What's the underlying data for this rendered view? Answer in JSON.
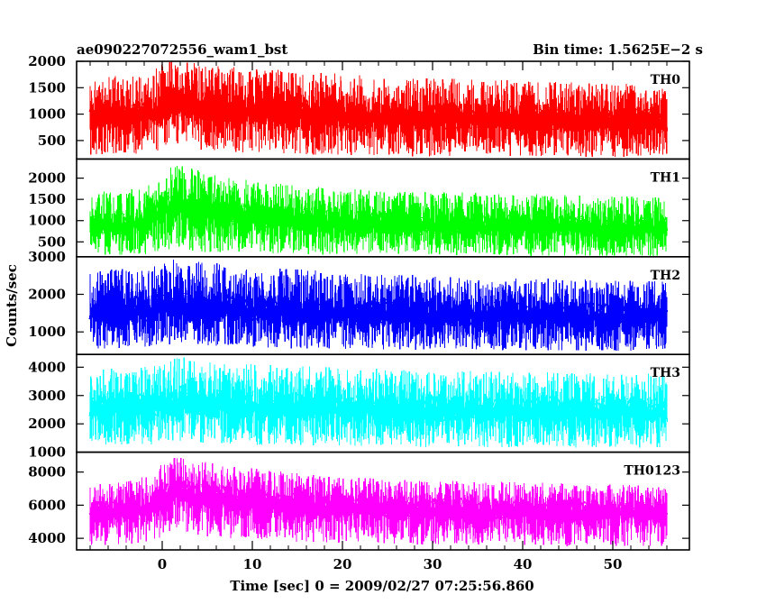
{
  "chart_data": {
    "type": "line",
    "title": "ae090227072556_wam1_bst",
    "subtitle": "Bin time: 1.5625E−2 s",
    "xlabel": "Time [sec] 0 = 2009/02/27 07:25:56.860",
    "ylabel": "Counts/sec",
    "xlim": [
      -9.5,
      58.5
    ],
    "x_ticks": [
      0,
      10,
      20,
      30,
      40,
      50
    ],
    "x_tick_labels": [
      "0",
      "10",
      "20",
      "30",
      "40",
      "50"
    ],
    "grid": false,
    "series": [
      {
        "name": "TH0",
        "color": "#ff0000",
        "ylim": [
          150,
          2000
        ],
        "y_ticks": [
          500,
          1000,
          1500,
          2000
        ],
        "y_tick_labels": [
          "500",
          "1000",
          "1500",
          "2000"
        ],
        "x": [
          -8,
          -6,
          -4,
          -2,
          0,
          1,
          2,
          3,
          4,
          6,
          8,
          10,
          12,
          14,
          16,
          18,
          20,
          22,
          24,
          26,
          28,
          30,
          32,
          34,
          36,
          38,
          40,
          42,
          44,
          46,
          48,
          50,
          52,
          54,
          56
        ],
        "values": [
          950,
          980,
          1000,
          1020,
          1150,
          1220,
          1250,
          1180,
          1150,
          1120,
          1100,
          1080,
          1050,
          1030,
          1020,
          1000,
          980,
          970,
          960,
          960,
          950,
          950,
          950,
          940,
          940,
          940,
          930,
          930,
          930,
          920,
          920,
          920,
          910,
          910,
          900
        ],
        "lower": [
          220,
          230,
          250,
          240,
          320,
          380,
          400,
          350,
          320,
          300,
          280,
          270,
          260,
          250,
          240,
          230,
          220,
          220,
          210,
          210,
          200,
          200,
          200,
          200,
          195,
          195,
          190,
          190,
          190,
          185,
          185,
          185,
          180,
          180,
          180
        ],
        "upper": [
          1650,
          1700,
          1750,
          1800,
          1950,
          2000,
          2000,
          1980,
          1950,
          1920,
          1900,
          1880,
          1850,
          1830,
          1800,
          1780,
          1760,
          1740,
          1720,
          1710,
          1700,
          1690,
          1680,
          1670,
          1660,
          1650,
          1640,
          1630,
          1620,
          1610,
          1600,
          1590,
          1580,
          1570,
          1560
        ]
      },
      {
        "name": "TH1",
        "color": "#00ff00",
        "ylim": [
          150,
          2450
        ],
        "y_ticks": [
          500,
          1000,
          1500,
          2000
        ],
        "y_tick_labels": [
          "500",
          "1000",
          "1500",
          "2000"
        ],
        "x": [
          -8,
          -6,
          -4,
          -2,
          0,
          1,
          2,
          3,
          4,
          6,
          8,
          10,
          12,
          14,
          16,
          18,
          20,
          22,
          24,
          26,
          28,
          30,
          32,
          34,
          36,
          38,
          40,
          42,
          44,
          46,
          48,
          50,
          52,
          54,
          56
        ],
        "values": [
          900,
          920,
          950,
          960,
          1300,
          1400,
          1450,
          1350,
          1300,
          1250,
          1180,
          1120,
          1080,
          1050,
          1020,
          1000,
          980,
          960,
          950,
          940,
          930,
          920,
          910,
          905,
          900,
          895,
          890,
          885,
          880,
          875,
          870,
          865,
          860,
          855,
          850
        ],
        "lower": [
          180,
          190,
          200,
          200,
          260,
          300,
          320,
          280,
          260,
          240,
          230,
          220,
          210,
          205,
          200,
          195,
          190,
          190,
          185,
          180,
          180,
          178,
          176,
          175,
          174,
          172,
          170,
          170,
          168,
          166,
          165,
          164,
          163,
          162,
          160
        ],
        "upper": [
          1650,
          1700,
          1750,
          1780,
          2050,
          2300,
          2350,
          2250,
          2200,
          2100,
          2000,
          1950,
          1900,
          1860,
          1820,
          1790,
          1760,
          1740,
          1720,
          1700,
          1690,
          1680,
          1670,
          1660,
          1650,
          1640,
          1630,
          1620,
          1610,
          1600,
          1590,
          1580,
          1570,
          1560,
          1550
        ]
      },
      {
        "name": "TH2",
        "color": "#0000ff",
        "ylim": [
          400,
          3000
        ],
        "y_ticks": [
          1000,
          2000,
          3000
        ],
        "y_tick_labels": [
          "1000",
          "2000",
          "3000"
        ],
        "x": [
          -8,
          -6,
          -4,
          -2,
          0,
          1,
          2,
          3,
          4,
          6,
          8,
          10,
          12,
          14,
          16,
          18,
          20,
          22,
          24,
          26,
          28,
          30,
          32,
          34,
          36,
          38,
          40,
          42,
          44,
          46,
          48,
          50,
          52,
          54,
          56
        ],
        "values": [
          1550,
          1580,
          1600,
          1620,
          1700,
          1750,
          1780,
          1720,
          1700,
          1680,
          1650,
          1620,
          1600,
          1580,
          1560,
          1550,
          1540,
          1530,
          1520,
          1510,
          1500,
          1495,
          1490,
          1485,
          1480,
          1475,
          1470,
          1465,
          1460,
          1455,
          1450,
          1445,
          1440,
          1435,
          1430
        ],
        "lower": [
          520,
          540,
          560,
          570,
          620,
          680,
          700,
          650,
          630,
          610,
          590,
          580,
          570,
          560,
          550,
          545,
          540,
          535,
          530,
          525,
          520,
          518,
          516,
          514,
          512,
          510,
          508,
          506,
          504,
          502,
          500,
          498,
          496,
          494,
          492
        ],
        "upper": [
          2600,
          2650,
          2700,
          2720,
          2850,
          2950,
          3000,
          2920,
          2880,
          2840,
          2800,
          2760,
          2720,
          2690,
          2660,
          2630,
          2600,
          2580,
          2560,
          2540,
          2520,
          2500,
          2480,
          2460,
          2450,
          2440,
          2430,
          2420,
          2410,
          2400,
          2390,
          2380,
          2370,
          2360,
          2350
        ]
      },
      {
        "name": "TH3",
        "color": "#00ffff",
        "ylim": [
          1000,
          4450
        ],
        "y_ticks": [
          1000,
          2000,
          3000,
          4000
        ],
        "y_tick_labels": [
          "1000",
          "2000",
          "3000",
          "4000"
        ],
        "x": [
          -8,
          -6,
          -4,
          -2,
          0,
          1,
          2,
          3,
          4,
          6,
          8,
          10,
          12,
          14,
          16,
          18,
          20,
          22,
          24,
          26,
          28,
          30,
          32,
          34,
          36,
          38,
          40,
          42,
          44,
          46,
          48,
          50,
          52,
          54,
          56
        ],
        "values": [
          2600,
          2620,
          2650,
          2670,
          2750,
          2800,
          2820,
          2780,
          2760,
          2740,
          2720,
          2700,
          2680,
          2660,
          2640,
          2620,
          2600,
          2590,
          2580,
          2570,
          2560,
          2550,
          2545,
          2540,
          2535,
          2530,
          2525,
          2520,
          2515,
          2510,
          2505,
          2500,
          2495,
          2490,
          2485
        ],
        "lower": [
          1200,
          1220,
          1230,
          1240,
          1300,
          1350,
          1380,
          1340,
          1320,
          1300,
          1280,
          1260,
          1240,
          1230,
          1220,
          1210,
          1200,
          1195,
          1190,
          1185,
          1180,
          1178,
          1176,
          1174,
          1172,
          1170,
          1168,
          1166,
          1164,
          1162,
          1160,
          1158,
          1156,
          1154,
          1152
        ],
        "upper": [
          3900,
          3950,
          4000,
          4020,
          4150,
          4300,
          4400,
          4300,
          4250,
          4200,
          4150,
          4120,
          4090,
          4060,
          4030,
          4000,
          3980,
          3960,
          3940,
          3920,
          3900,
          3890,
          3880,
          3870,
          3860,
          3850,
          3840,
          3830,
          3820,
          3810,
          3800,
          3790,
          3780,
          3770,
          3760
        ]
      },
      {
        "name": "TH0123",
        "color": "#ff00ff",
        "ylim": [
          3300,
          9200
        ],
        "y_ticks": [
          4000,
          6000,
          8000
        ],
        "y_tick_labels": [
          "4000",
          "6000",
          "8000"
        ],
        "x": [
          -8,
          -6,
          -4,
          -2,
          0,
          1,
          2,
          3,
          4,
          6,
          8,
          10,
          12,
          14,
          16,
          18,
          20,
          22,
          24,
          26,
          28,
          30,
          32,
          34,
          36,
          38,
          40,
          42,
          44,
          46,
          48,
          50,
          52,
          54,
          56
        ],
        "values": [
          5600,
          5700,
          5750,
          5800,
          6400,
          6800,
          7000,
          6700,
          6600,
          6500,
          6350,
          6250,
          6150,
          6050,
          6000,
          5950,
          5900,
          5880,
          5860,
          5840,
          5820,
          5800,
          5790,
          5780,
          5770,
          5760,
          5750,
          5740,
          5730,
          5720,
          5710,
          5700,
          5690,
          5680,
          5670
        ],
        "lower": [
          3500,
          3600,
          3650,
          3700,
          4000,
          4300,
          4500,
          4250,
          4150,
          4050,
          3950,
          3900,
          3850,
          3800,
          3750,
          3720,
          3700,
          3680,
          3660,
          3640,
          3620,
          3600,
          3590,
          3580,
          3570,
          3560,
          3550,
          3540,
          3530,
          3520,
          3510,
          3500,
          3490,
          3480,
          3470
        ],
        "upper": [
          7200,
          7400,
          7600,
          7700,
          8500,
          8900,
          9100,
          8900,
          8700,
          8550,
          8400,
          8250,
          8100,
          8000,
          7900,
          7800,
          7700,
          7650,
          7600,
          7550,
          7500,
          7480,
          7460,
          7440,
          7420,
          7400,
          7380,
          7360,
          7340,
          7320,
          7300,
          7280,
          7260,
          7240,
          7220
        ]
      }
    ]
  }
}
